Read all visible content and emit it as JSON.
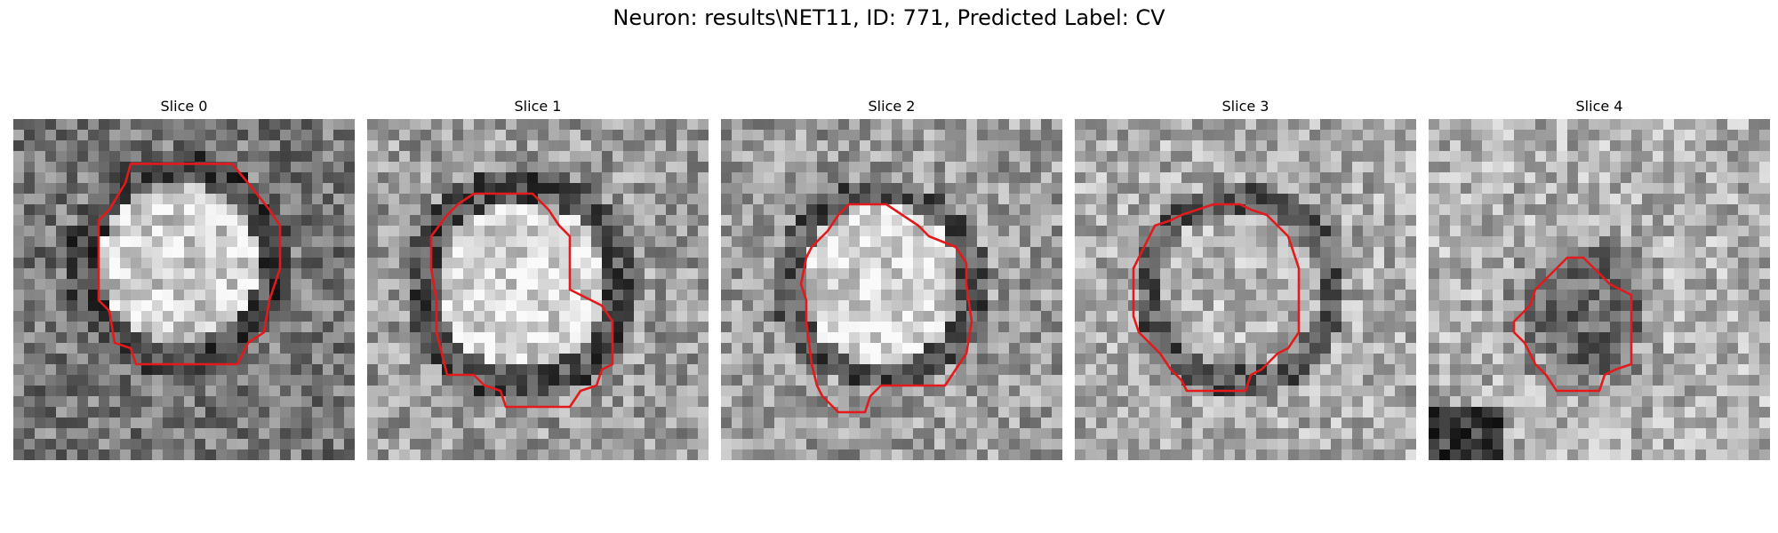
{
  "figure": {
    "title": "Neuron: results\\NET11, ID: 771, Predicted Label: CV",
    "colormap": "gray",
    "contour_color": "#e31a1c",
    "panels": [
      {
        "title": "Slice 0"
      },
      {
        "title": "Slice 1"
      },
      {
        "title": "Slice 2"
      },
      {
        "title": "Slice 3"
      },
      {
        "title": "Slice 4"
      }
    ]
  }
}
